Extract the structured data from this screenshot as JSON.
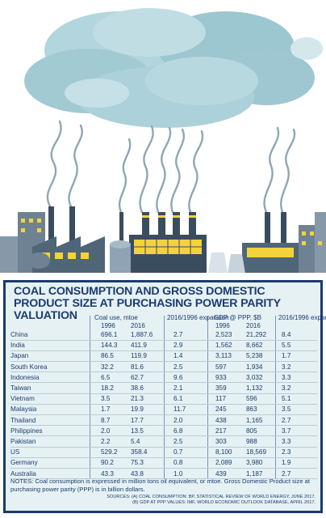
{
  "colors": {
    "navy": "#1b3b6f",
    "panel_bg": "#e6f1f4",
    "cloud": "#a7cdd6",
    "smoke": "#8fa7b3",
    "accent_yellow": "#f2d33b",
    "building": "#3a4d5f"
  },
  "illustration": {
    "subject": "industrial skyline with coal power plant chimneys emitting smoke into a large cloud",
    "icons": [
      "cloud-icon",
      "smoke-plume-icon",
      "factory-icon",
      "chimney-icon",
      "storage-tank-icon",
      "building-icon"
    ]
  },
  "chart_data": {
    "type": "table",
    "title": "COAL CONSUMPTION AND GROSS DOMESTIC PRODUCT SIZE AT PURCHASING POWER PARITY VALUATION",
    "group_headers": [
      "Coal use, mtoe",
      "2016/1996 expansion",
      "GDP @ PPP, $B",
      "2016/1996 expansion"
    ],
    "columns": [
      "1996",
      "2016",
      "2016/1996 expansion",
      "1996",
      "2016",
      "2016/1996 expansion"
    ],
    "rows": [
      {
        "country": "China",
        "coal_1996": "696.1",
        "coal_2016": "1,887.6",
        "coal_expansion": "2.7",
        "gdp_1996": "2,523",
        "gdp_2016": "21,292",
        "gdp_expansion": "8.4"
      },
      {
        "country": "India",
        "coal_1996": "144.3",
        "coal_2016": "411.9",
        "coal_expansion": "2.9",
        "gdp_1996": "1,562",
        "gdp_2016": "8,662",
        "gdp_expansion": "5.5"
      },
      {
        "country": "Japan",
        "coal_1996": "86.5",
        "coal_2016": "119.9",
        "coal_expansion": "1.4",
        "gdp_1996": "3,113",
        "gdp_2016": "5,238",
        "gdp_expansion": "1.7"
      },
      {
        "country": "South Korea",
        "coal_1996": "32.2",
        "coal_2016": "81.6",
        "coal_expansion": "2.5",
        "gdp_1996": "597",
        "gdp_2016": "1,934",
        "gdp_expansion": "3.2"
      },
      {
        "country": "Indonesia",
        "coal_1996": "6.5",
        "coal_2016": "62.7",
        "coal_expansion": "9.6",
        "gdp_1996": "933",
        "gdp_2016": "3,032",
        "gdp_expansion": "3.3"
      },
      {
        "country": "Taiwan",
        "coal_1996": "18.2",
        "coal_2016": "38.6",
        "coal_expansion": "2.1",
        "gdp_1996": "359",
        "gdp_2016": "1,132",
        "gdp_expansion": "3.2"
      },
      {
        "country": "Vietnam",
        "coal_1996": "3.5",
        "coal_2016": "21.3",
        "coal_expansion": "6.1",
        "gdp_1996": "117",
        "gdp_2016": "596",
        "gdp_expansion": "5.1"
      },
      {
        "country": "Malaysia",
        "coal_1996": "1.7",
        "coal_2016": "19.9",
        "coal_expansion": "11.7",
        "gdp_1996": "245",
        "gdp_2016": "863",
        "gdp_expansion": "3.5"
      },
      {
        "country": "Thailand",
        "coal_1996": "8.7",
        "coal_2016": "17.7",
        "coal_expansion": "2.0",
        "gdp_1996": "438",
        "gdp_2016": "1,165",
        "gdp_expansion": "2.7"
      },
      {
        "country": "Philippines",
        "coal_1996": "2.0",
        "coal_2016": "13.5",
        "coal_expansion": "6.8",
        "gdp_1996": "217",
        "gdp_2016": "805",
        "gdp_expansion": "3.7"
      },
      {
        "country": "Pakistan",
        "coal_1996": "2.2",
        "coal_2016": "5.4",
        "coal_expansion": "2.5",
        "gdp_1996": "303",
        "gdp_2016": "988",
        "gdp_expansion": "3.3"
      },
      {
        "country": "US",
        "coal_1996": "529.2",
        "coal_2016": "358.4",
        "coal_expansion": "0.7",
        "gdp_1996": "8,100",
        "gdp_2016": "18,569",
        "gdp_expansion": "2.3"
      },
      {
        "country": "Germany",
        "coal_1996": "90.2",
        "coal_2016": "75.3",
        "coal_expansion": "0.8",
        "gdp_1996": "2,089",
        "gdp_2016": "3,980",
        "gdp_expansion": "1.9"
      },
      {
        "country": "Australia",
        "coal_1996": "43.3",
        "coal_2016": "43.8",
        "coal_expansion": "1.0",
        "gdp_1996": "439",
        "gdp_2016": "1,187",
        "gdp_expansion": "2.7"
      }
    ],
    "notes": "NOTES: Coal consumption is expressed in million tons oil equivalent, or mtoe. Gross Domestic Product size at purchasing power parity (PPP) is in billion dollars.",
    "sources": [
      "SOURCES: (A) COAL CONSUMPTION: BP, STATISTICAL REVIEW OF WORLD ENERGY, JUNE 2017.",
      "(B) GDP AT PPP VALUES: IMF, WORLD ECONOMIC OUTLOOK DATABASE, APRIL 2017."
    ]
  }
}
